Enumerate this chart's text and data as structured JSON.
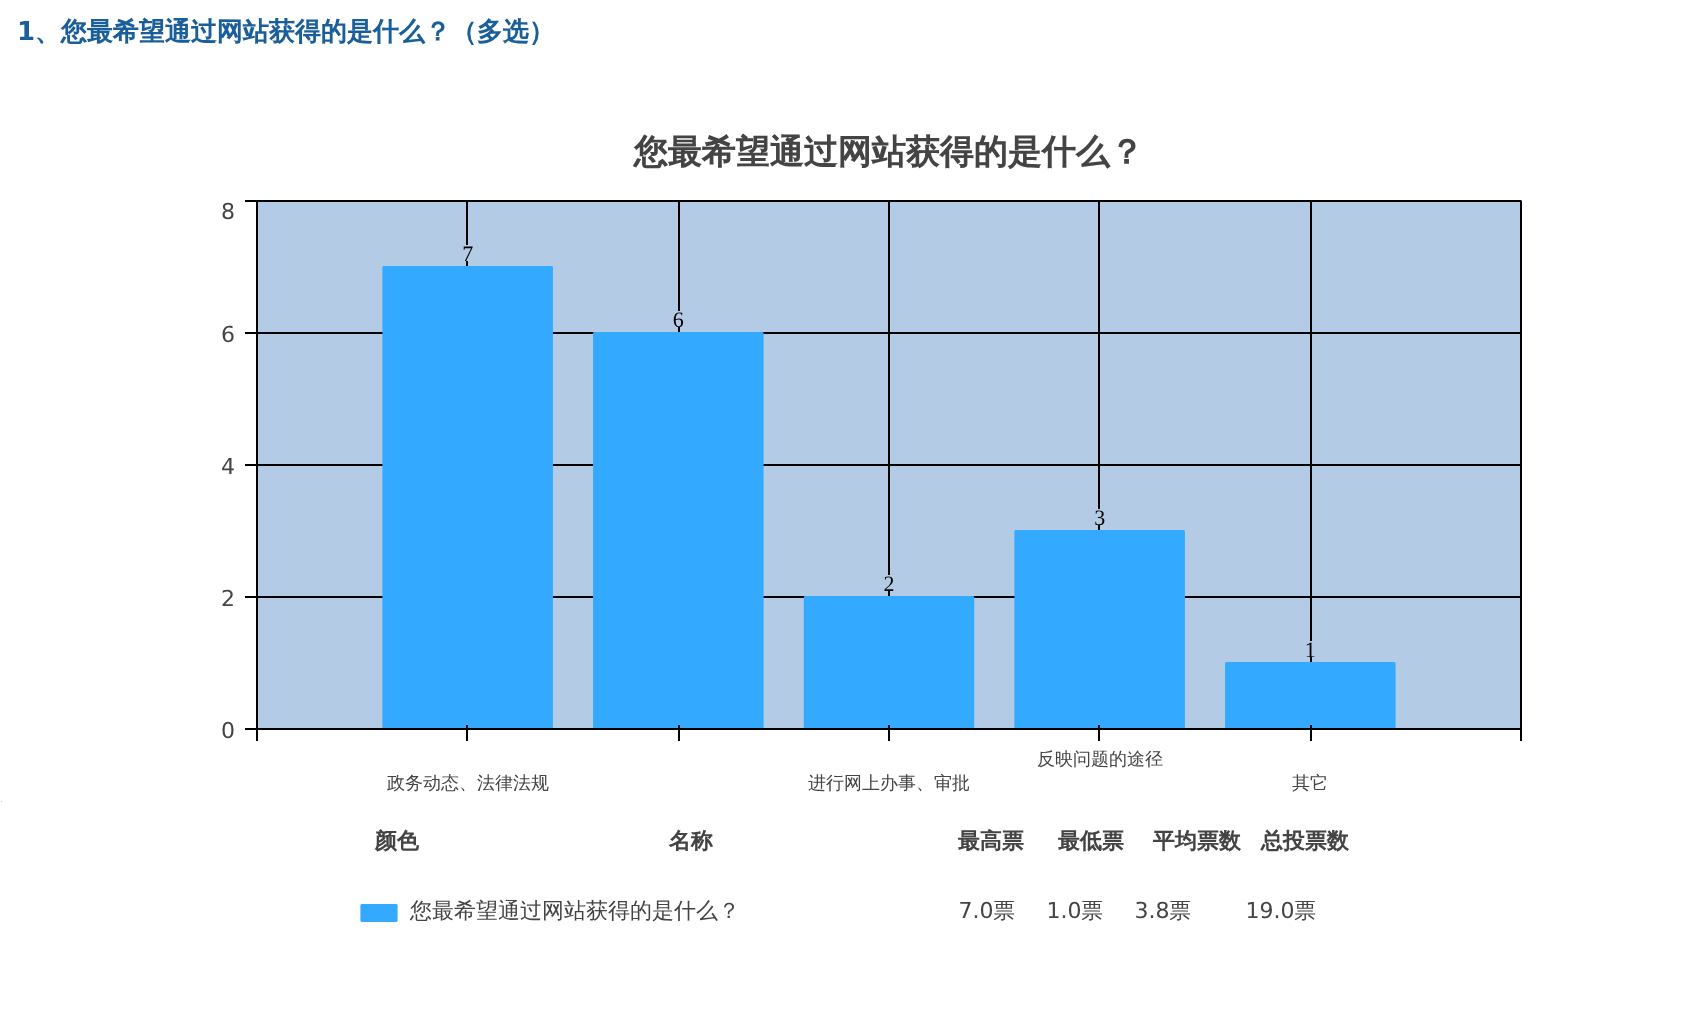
{
  "chart_data": {
    "type": "bar",
    "title": "1、您最希望通过网站获得的是什么？（多选）",
    "subtitle": "您最希望通过网站获得的是什么？",
    "categories": [
      "政务动态、法律法规",
      null,
      "进行网上办事、审批",
      "反映问题的途径",
      "其它"
    ],
    "series": [
      {
        "name": "您最希望通过网站获得的是什么？",
        "color": "#33aaff",
        "values": [
          7,
          6,
          2,
          3,
          1
        ]
      }
    ],
    "ylim": [
      0,
      8
    ],
    "yticks": [
      0,
      2,
      4,
      6,
      8
    ],
    "grid": true,
    "data_labels": true,
    "legend": "bottom",
    "annotations": [
      "颜色",
      "名称",
      "最高票",
      "最低票",
      "平均票数",
      "总投票数",
      "7.0票",
      "1.0票",
      "3.8票",
      "19.0票"
    ]
  }
}
